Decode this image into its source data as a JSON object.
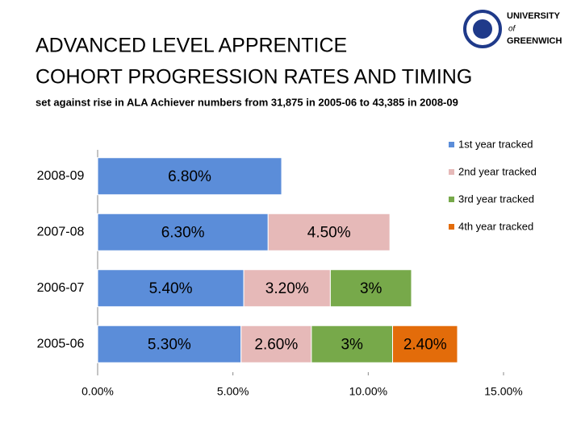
{
  "logo": [
    "UNIVERSITY",
    "of",
    "GREENWICH"
  ],
  "chart_data": {
    "type": "stacked-barh",
    "title": [
      "ADVANCED  LEVEL APPRENTICE",
      "COHORT PROGRESSION RATES AND TIMING"
    ],
    "subtitle": "set against rise in ALA Achiever numbers from 31,875 in 2005-06 to 43,385 in 2008-09",
    "categories": [
      "2008-09",
      "2007-08",
      "2006-07",
      "2005-06"
    ],
    "series": [
      {
        "name": "1st year tracked",
        "color": "#5b8dd9",
        "values": [
          6.8,
          6.3,
          5.4,
          5.3
        ],
        "value_labels": [
          "6.80%",
          "6.30%",
          "5.40%",
          "5.30%"
        ]
      },
      {
        "name": "2nd year tracked",
        "color": "#e6b9b8",
        "values": [
          null,
          4.5,
          3.2,
          2.6
        ],
        "value_labels": [
          null,
          "4.50%",
          "3.20%",
          "2.60%"
        ]
      },
      {
        "name": "3rd year tracked",
        "color": "#77a94a",
        "values": [
          null,
          null,
          3,
          3
        ],
        "value_labels": [
          null,
          null,
          "3%",
          "3%"
        ]
      },
      {
        "name": "4th year tracked",
        "color": "#e36c0a",
        "values": [
          null,
          null,
          null,
          2.4
        ],
        "value_labels": [
          null,
          null,
          null,
          "2.40%"
        ]
      }
    ],
    "xlim": [
      0,
      15
    ],
    "xticks": [
      {
        "value": 0,
        "label": "0.00%"
      },
      {
        "value": 5,
        "label": "5.00%"
      },
      {
        "value": 10,
        "label": "10.00%"
      },
      {
        "value": 15,
        "label": "15.00%"
      }
    ],
    "legend": "right",
    "grid": false
  }
}
